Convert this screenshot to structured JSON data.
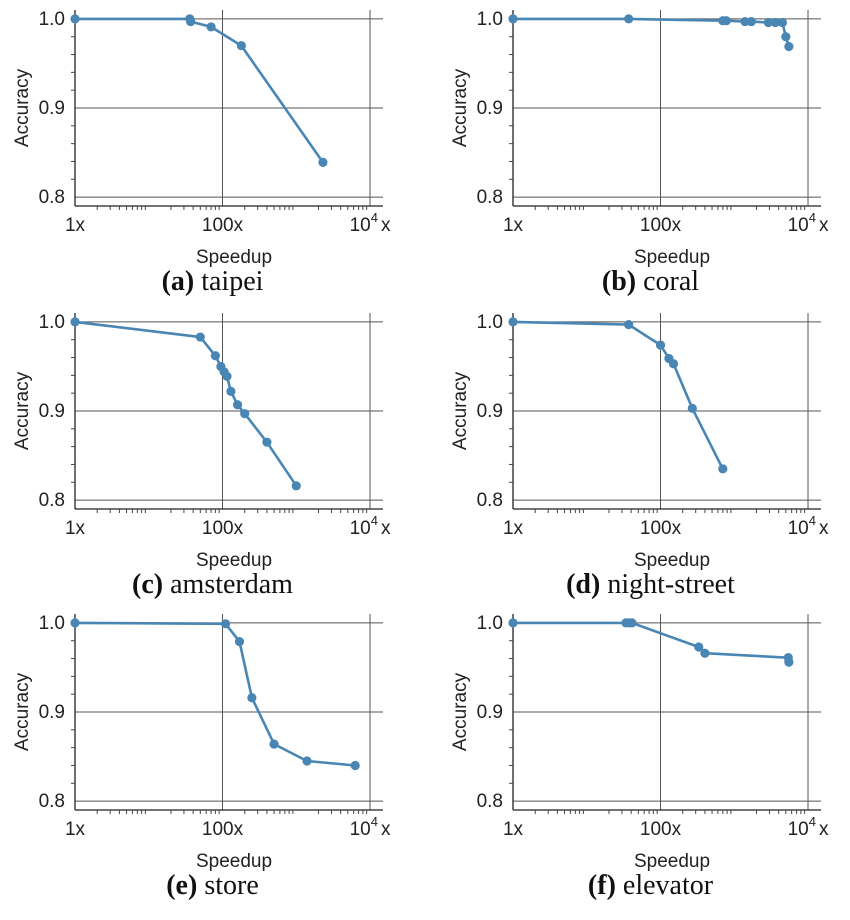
{
  "chart_data": [
    {
      "type": "line",
      "label": "(a)",
      "caption": "taipei",
      "xlabel": "Speedup",
      "ylabel": "Accuracy",
      "xscale": "log",
      "xlim": [
        1,
        15000
      ],
      "ylim": [
        0.79,
        1.01
      ],
      "xticks": [
        {
          "v": 1,
          "label": "1x"
        },
        {
          "v": 100,
          "label": "100x"
        },
        {
          "v": 10000,
          "label": "10",
          "sup": "4",
          "suffix": "x"
        }
      ],
      "yticks": [
        {
          "v": 0.8,
          "label": "0.8"
        },
        {
          "v": 0.9,
          "label": "0.9"
        },
        {
          "v": 1.0,
          "label": "1.0"
        }
      ],
      "grid": true,
      "series": [
        {
          "x": [
            1,
            36,
            37,
            70,
            180,
            2300
          ],
          "y": [
            1.0,
            1.0,
            0.997,
            0.991,
            0.97,
            0.839
          ]
        }
      ]
    },
    {
      "type": "line",
      "label": "(b)",
      "caption": "coral",
      "xlabel": "Speedup",
      "ylabel": "Accuracy",
      "xscale": "log",
      "xlim": [
        1,
        15000
      ],
      "ylim": [
        0.79,
        1.01
      ],
      "xticks": [
        {
          "v": 1,
          "label": "1x"
        },
        {
          "v": 100,
          "label": "100x"
        },
        {
          "v": 10000,
          "label": "10",
          "sup": "4",
          "suffix": "x"
        }
      ],
      "yticks": [
        {
          "v": 0.8,
          "label": "0.8"
        },
        {
          "v": 0.9,
          "label": "0.9"
        },
        {
          "v": 1.0,
          "label": "1.0"
        }
      ],
      "grid": true,
      "series": [
        {
          "x": [
            1,
            37,
            700,
            780,
            1400,
            1700,
            2900,
            3600,
            4500,
            5000,
            5500
          ],
          "y": [
            1.0,
            1.0,
            0.998,
            0.998,
            0.997,
            0.997,
            0.996,
            0.996,
            0.996,
            0.98,
            0.969
          ]
        }
      ]
    },
    {
      "type": "line",
      "label": "(c)",
      "caption": "amsterdam",
      "xlabel": "Speedup",
      "ylabel": "Accuracy",
      "xscale": "log",
      "xlim": [
        1,
        15000
      ],
      "ylim": [
        0.79,
        1.01
      ],
      "xticks": [
        {
          "v": 1,
          "label": "1x"
        },
        {
          "v": 100,
          "label": "100x"
        },
        {
          "v": 10000,
          "label": "10",
          "sup": "4",
          "suffix": "x"
        }
      ],
      "yticks": [
        {
          "v": 0.8,
          "label": "0.8"
        },
        {
          "v": 0.9,
          "label": "0.9"
        },
        {
          "v": 1.0,
          "label": "1.0"
        }
      ],
      "grid": true,
      "series": [
        {
          "x": [
            1,
            50,
            80,
            95,
            105,
            115,
            130,
            160,
            200,
            400,
            1000
          ],
          "y": [
            1.0,
            0.983,
            0.962,
            0.95,
            0.944,
            0.939,
            0.922,
            0.907,
            0.897,
            0.865,
            0.816
          ]
        }
      ]
    },
    {
      "type": "line",
      "label": "(d)",
      "caption": "night-street",
      "xlabel": "Speedup",
      "ylabel": "Accuracy",
      "xscale": "log",
      "xlim": [
        1,
        15000
      ],
      "ylim": [
        0.79,
        1.01
      ],
      "xticks": [
        {
          "v": 1,
          "label": "1x"
        },
        {
          "v": 100,
          "label": "100x"
        },
        {
          "v": 10000,
          "label": "10",
          "sup": "4",
          "suffix": "x"
        }
      ],
      "yticks": [
        {
          "v": 0.8,
          "label": "0.8"
        },
        {
          "v": 0.9,
          "label": "0.9"
        },
        {
          "v": 1.0,
          "label": "1.0"
        }
      ],
      "grid": true,
      "series": [
        {
          "x": [
            1,
            37,
            100,
            130,
            150,
            270,
            700
          ],
          "y": [
            1.0,
            0.997,
            0.974,
            0.959,
            0.953,
            0.903,
            0.835
          ]
        }
      ]
    },
    {
      "type": "line",
      "label": "(e)",
      "caption": "store",
      "xlabel": "Speedup",
      "ylabel": "Accuracy",
      "xscale": "log",
      "xlim": [
        1,
        15000
      ],
      "ylim": [
        0.79,
        1.01
      ],
      "xticks": [
        {
          "v": 1,
          "label": "1x"
        },
        {
          "v": 100,
          "label": "100x"
        },
        {
          "v": 10000,
          "label": "10",
          "sup": "4",
          "suffix": "x"
        }
      ],
      "yticks": [
        {
          "v": 0.8,
          "label": "0.8"
        },
        {
          "v": 0.9,
          "label": "0.9"
        },
        {
          "v": 1.0,
          "label": "1.0"
        }
      ],
      "grid": true,
      "series": [
        {
          "x": [
            1,
            110,
            170,
            250,
            500,
            1400,
            6300
          ],
          "y": [
            1.0,
            0.999,
            0.979,
            0.916,
            0.864,
            0.845,
            0.84
          ]
        }
      ]
    },
    {
      "type": "line",
      "label": "(f)",
      "caption": "elevator",
      "xlabel": "Speedup",
      "ylabel": "Accuracy",
      "xscale": "log",
      "xlim": [
        1,
        15000
      ],
      "ylim": [
        0.79,
        1.01
      ],
      "xticks": [
        {
          "v": 1,
          "label": "1x"
        },
        {
          "v": 100,
          "label": "100x"
        },
        {
          "v": 10000,
          "label": "10",
          "sup": "4",
          "suffix": "x"
        }
      ],
      "yticks": [
        {
          "v": 0.8,
          "label": "0.8"
        },
        {
          "v": 0.9,
          "label": "0.9"
        },
        {
          "v": 1.0,
          "label": "1.0"
        }
      ],
      "grid": true,
      "series": [
        {
          "x": [
            1,
            34,
            38,
            41,
            330,
            400,
            5400,
            5500
          ],
          "y": [
            1.0,
            1.0,
            1.0,
            1.0,
            0.973,
            0.966,
            0.961,
            0.956
          ]
        }
      ]
    }
  ],
  "colors": {
    "series": "#4a86b4",
    "grid": "#555555",
    "axis": "#222222"
  }
}
